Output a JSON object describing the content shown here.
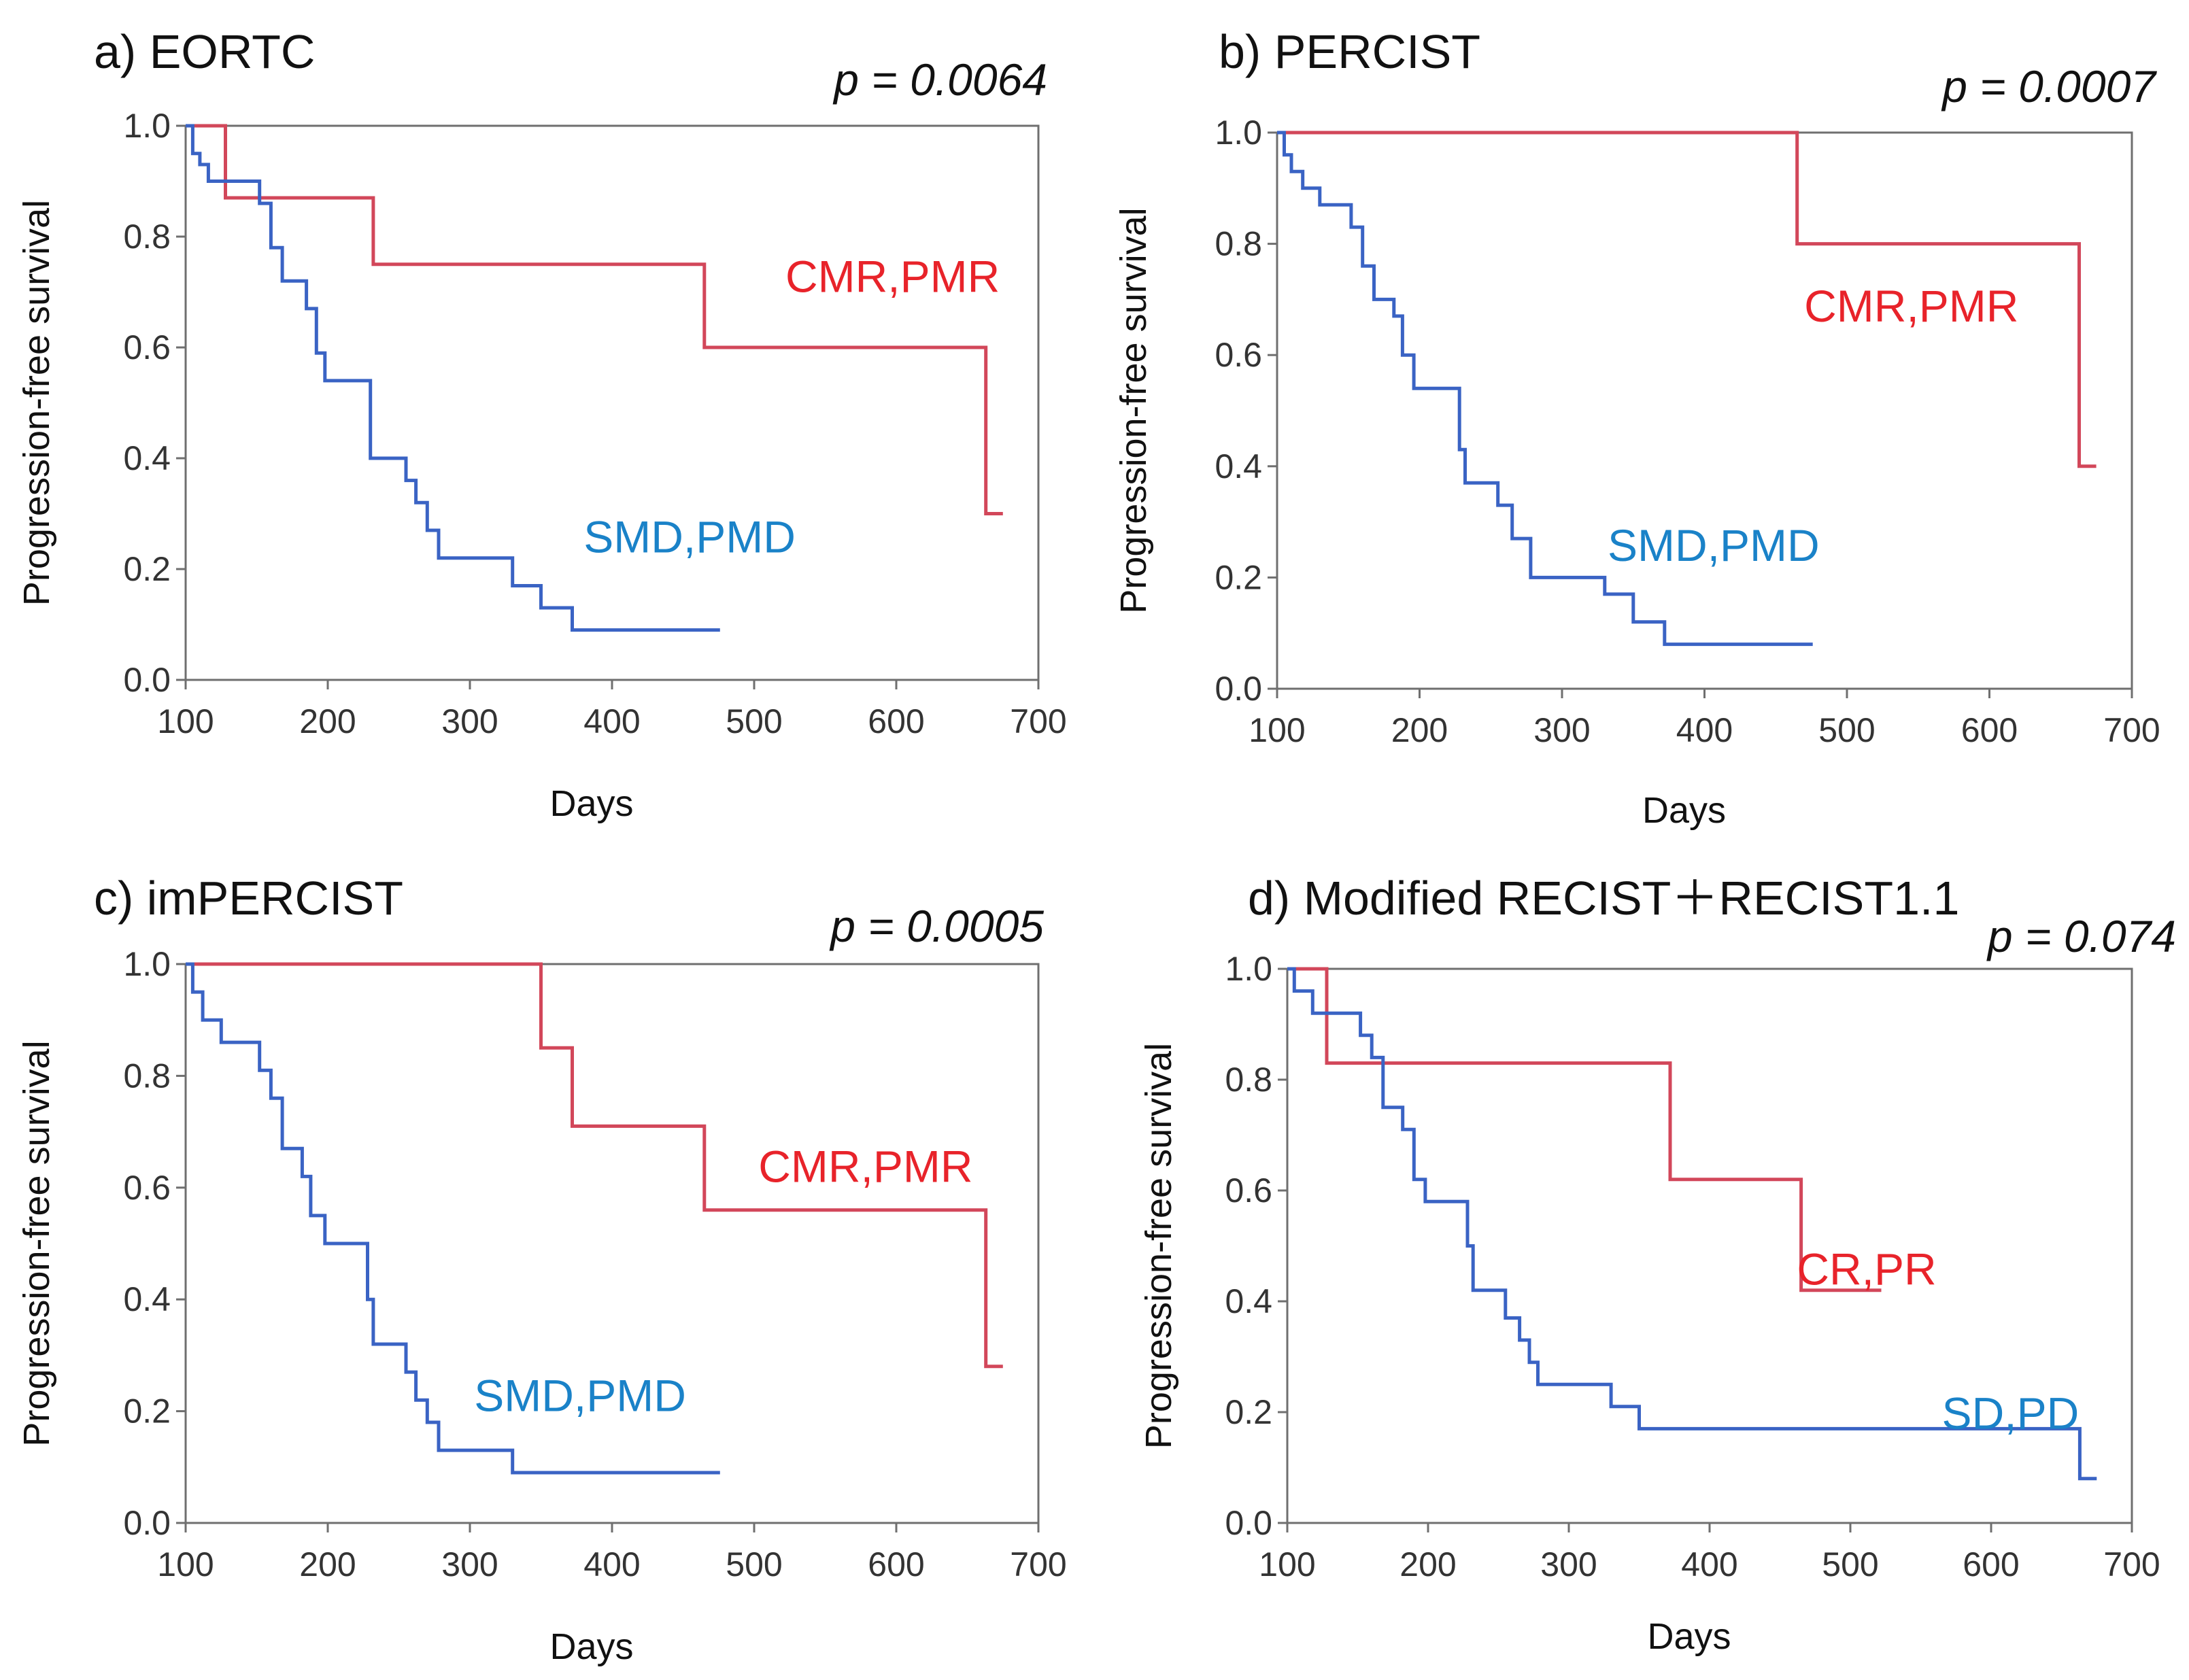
{
  "figure": {
    "description_free": true
  },
  "chart_data": [
    {
      "type": "line",
      "panel": "a",
      "title": "a) EORTC",
      "p_value": "p = 0.0064",
      "xlabel": "Days",
      "ylabel": "Progression-free  survival",
      "xlim": [
        100,
        700
      ],
      "ylim": [
        0.0,
        1.0
      ],
      "x_ticks": [
        "100",
        "200",
        "300",
        "400",
        "500",
        "600",
        "700"
      ],
      "y_ticks": [
        "0.0",
        "0.2",
        "0.4",
        "0.6",
        "0.8",
        "1.0"
      ],
      "series": [
        {
          "name": "CMR,PMR",
          "color": "#e8232a",
          "line_color": "#d2475a",
          "label_at": [
            522,
            0.7
          ],
          "x": [
            100,
            128,
            128,
            232,
            232,
            465,
            465,
            663,
            663,
            675
          ],
          "y": [
            1.0,
            1.0,
            0.87,
            0.87,
            0.75,
            0.75,
            0.6,
            0.6,
            0.3,
            0.3
          ]
        },
        {
          "name": "SMD,PMD",
          "color": "#1a82c8",
          "line_color": "#3a63c4",
          "label_at": [
            380,
            0.23
          ],
          "x": [
            100,
            105,
            105,
            110,
            110,
            116,
            116,
            152,
            152,
            160,
            160,
            168,
            168,
            185,
            185,
            192,
            192,
            198,
            198,
            230,
            230,
            255,
            255,
            262,
            262,
            270,
            270,
            278,
            278,
            330,
            330,
            350,
            350,
            372,
            372,
            476
          ],
          "y": [
            1.0,
            1.0,
            0.95,
            0.95,
            0.93,
            0.93,
            0.9,
            0.9,
            0.86,
            0.86,
            0.78,
            0.78,
            0.72,
            0.72,
            0.67,
            0.67,
            0.59,
            0.59,
            0.54,
            0.54,
            0.4,
            0.4,
            0.36,
            0.36,
            0.32,
            0.32,
            0.27,
            0.27,
            0.22,
            0.22,
            0.17,
            0.17,
            0.13,
            0.13,
            0.09,
            0.09
          ]
        }
      ]
    },
    {
      "type": "line",
      "panel": "b",
      "title": "b) PERCIST",
      "p_value": "p = 0.0007",
      "xlabel": "Days",
      "ylabel": "Progression-free  survival",
      "xlim": [
        100,
        700
      ],
      "ylim": [
        0.0,
        1.0
      ],
      "x_ticks": [
        "100",
        "200",
        "300",
        "400",
        "500",
        "600",
        "700"
      ],
      "y_ticks": [
        "0.0",
        "0.2",
        "0.4",
        "0.6",
        "0.8",
        "1.0"
      ],
      "series": [
        {
          "name": "CMR,PMR",
          "color": "#e8232a",
          "line_color": "#d2475a",
          "label_at": [
            470,
            0.66
          ],
          "x": [
            100,
            465,
            465,
            663,
            663,
            675
          ],
          "y": [
            1.0,
            1.0,
            0.8,
            0.8,
            0.4,
            0.4
          ]
        },
        {
          "name": "SMD,PMD",
          "color": "#1a82c8",
          "line_color": "#3a63c4",
          "label_at": [
            332,
            0.23
          ],
          "x": [
            100,
            105,
            105,
            110,
            110,
            118,
            118,
            130,
            130,
            152,
            152,
            160,
            160,
            168,
            168,
            182,
            182,
            188,
            188,
            196,
            196,
            228,
            228,
            232,
            232,
            255,
            255,
            265,
            265,
            278,
            278,
            330,
            330,
            350,
            350,
            372,
            372,
            476
          ],
          "y": [
            1.0,
            1.0,
            0.96,
            0.96,
            0.93,
            0.93,
            0.9,
            0.9,
            0.87,
            0.87,
            0.83,
            0.83,
            0.76,
            0.76,
            0.7,
            0.7,
            0.67,
            0.67,
            0.6,
            0.6,
            0.54,
            0.54,
            0.43,
            0.43,
            0.37,
            0.37,
            0.33,
            0.33,
            0.27,
            0.27,
            0.2,
            0.2,
            0.17,
            0.17,
            0.12,
            0.12,
            0.08,
            0.08
          ]
        }
      ]
    },
    {
      "type": "line",
      "panel": "c",
      "title": "c) imPERCIST",
      "p_value": "p = 0.0005",
      "xlabel": "Days",
      "ylabel": "Progression-free  survival",
      "xlim": [
        100,
        700
      ],
      "ylim": [
        0.0,
        1.0
      ],
      "x_ticks": [
        "100",
        "200",
        "300",
        "400",
        "500",
        "600",
        "700"
      ],
      "y_ticks": [
        "0.0",
        "0.2",
        "0.4",
        "0.6",
        "0.8",
        "1.0"
      ],
      "series": [
        {
          "name": "CMR,PMR",
          "color": "#e8232a",
          "line_color": "#d2475a",
          "label_at": [
            503,
            0.61
          ],
          "x": [
            100,
            350,
            350,
            372,
            372,
            465,
            465,
            663,
            663,
            675
          ],
          "y": [
            1.0,
            1.0,
            0.85,
            0.85,
            0.71,
            0.71,
            0.56,
            0.56,
            0.28,
            0.28
          ]
        },
        {
          "name": "SMD,PMD",
          "color": "#1a82c8",
          "line_color": "#3a63c4",
          "label_at": [
            303,
            0.2
          ],
          "x": [
            100,
            105,
            105,
            112,
            112,
            125,
            125,
            152,
            152,
            160,
            160,
            168,
            168,
            182,
            182,
            188,
            188,
            198,
            198,
            228,
            228,
            232,
            232,
            255,
            255,
            262,
            262,
            270,
            270,
            278,
            278,
            330,
            330,
            476
          ],
          "y": [
            1.0,
            1.0,
            0.95,
            0.95,
            0.9,
            0.9,
            0.86,
            0.86,
            0.81,
            0.81,
            0.76,
            0.76,
            0.67,
            0.67,
            0.62,
            0.62,
            0.55,
            0.55,
            0.5,
            0.5,
            0.4,
            0.4,
            0.32,
            0.32,
            0.27,
            0.27,
            0.22,
            0.22,
            0.18,
            0.18,
            0.13,
            0.13,
            0.09,
            0.09
          ]
        }
      ]
    },
    {
      "type": "line",
      "panel": "d",
      "title": "d) Modified RECIST＋RECIST1.1",
      "p_value": "p = 0.074",
      "xlabel": "Days",
      "ylabel": "Progression-free  survival",
      "xlim": [
        100,
        700
      ],
      "ylim": [
        0.0,
        1.0
      ],
      "x_ticks": [
        "100",
        "200",
        "300",
        "400",
        "500",
        "600",
        "700"
      ],
      "y_ticks": [
        "0.0",
        "0.2",
        "0.4",
        "0.6",
        "0.8",
        "1.0"
      ],
      "series": [
        {
          "name": "CR,PR",
          "color": "#e8232a",
          "line_color": "#d2475a",
          "label_at": [
            462,
            0.43
          ],
          "x": [
            100,
            128,
            128,
            372,
            372,
            465,
            465,
            522
          ],
          "y": [
            1.0,
            1.0,
            0.83,
            0.83,
            0.62,
            0.62,
            0.42,
            0.42
          ]
        },
        {
          "name": "SD,PD",
          "color": "#1a82c8",
          "line_color": "#3a63c4",
          "label_at": [
            565,
            0.17
          ],
          "x": [
            100,
            105,
            105,
            118,
            118,
            152,
            152,
            160,
            160,
            168,
            168,
            182,
            182,
            190,
            190,
            198,
            198,
            228,
            228,
            232,
            232,
            255,
            255,
            265,
            265,
            272,
            272,
            278,
            278,
            330,
            330,
            350,
            350,
            663,
            663,
            675
          ],
          "y": [
            1.0,
            1.0,
            0.96,
            0.96,
            0.92,
            0.92,
            0.88,
            0.88,
            0.84,
            0.84,
            0.75,
            0.75,
            0.71,
            0.71,
            0.62,
            0.62,
            0.58,
            0.58,
            0.5,
            0.5,
            0.42,
            0.42,
            0.37,
            0.37,
            0.33,
            0.33,
            0.29,
            0.29,
            0.25,
            0.25,
            0.21,
            0.21,
            0.17,
            0.17,
            0.08,
            0.08
          ]
        }
      ]
    }
  ]
}
